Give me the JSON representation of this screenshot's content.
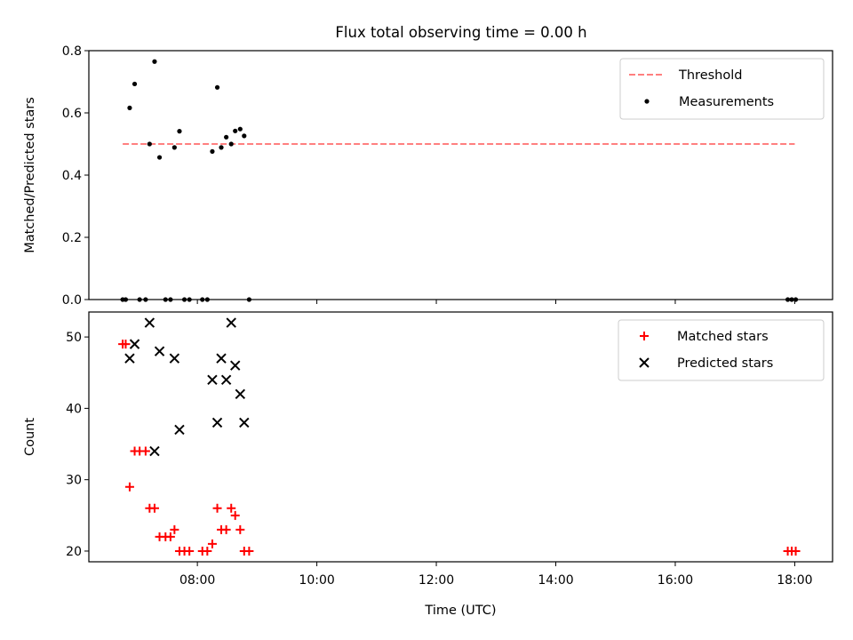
{
  "title": "Flux total observing time = 0.00 h",
  "chart_data": [
    {
      "type": "scatter",
      "ylabel": "Matched/Predicted stars",
      "xlabel": "",
      "xlim": [
        "06:11",
        "18:38"
      ],
      "ylim": [
        0,
        0.8
      ],
      "yticks": [
        0,
        0.2,
        0.4,
        0.6,
        0.8
      ],
      "ytick_labels": [
        "0.0",
        "0.2",
        "0.4",
        "0.6",
        "0.8"
      ],
      "legend_position": "top-right",
      "threshold": {
        "name": "Threshold",
        "value": 0.5,
        "x_from": "06:45",
        "x_to": "18:00",
        "color": "#ff7f7f",
        "style": "dashed"
      },
      "series": [
        {
          "name": "Measurements",
          "color": "#000000",
          "marker": "dot",
          "points": [
            [
              "06:45",
              0
            ],
            [
              "06:48",
              0
            ],
            [
              "06:52",
              0.616
            ],
            [
              "06:57",
              0.693
            ],
            [
              "07:02",
              0
            ],
            [
              "07:08",
              0
            ],
            [
              "07:12",
              0.5
            ],
            [
              "07:17",
              0.765
            ],
            [
              "07:22",
              0.457
            ],
            [
              "07:28",
              0
            ],
            [
              "07:33",
              0
            ],
            [
              "07:37",
              0.489
            ],
            [
              "07:42",
              0.541
            ],
            [
              "07:47",
              0
            ],
            [
              "07:52",
              0
            ],
            [
              "08:05",
              0
            ],
            [
              "08:10",
              0
            ],
            [
              "08:15",
              0.476
            ],
            [
              "08:20",
              0.682
            ],
            [
              "08:24",
              0.489
            ],
            [
              "08:29",
              0.522
            ],
            [
              "08:34",
              0.5
            ],
            [
              "08:38",
              0.542
            ],
            [
              "08:43",
              0.548
            ],
            [
              "08:47",
              0.526
            ],
            [
              "08:52",
              0
            ],
            [
              "17:53",
              0
            ],
            [
              "17:57",
              0
            ],
            [
              "18:01",
              0
            ]
          ]
        }
      ]
    },
    {
      "type": "scatter",
      "ylabel": "Count",
      "xlabel": "Time (UTC)",
      "xlim": [
        "06:11",
        "18:38"
      ],
      "ylim": [
        18.5,
        53.5
      ],
      "yticks": [
        20,
        30,
        40,
        50
      ],
      "ytick_labels": [
        "20",
        "30",
        "40",
        "50"
      ],
      "xticks": [
        "08:00",
        "10:00",
        "12:00",
        "14:00",
        "16:00",
        "18:00"
      ],
      "xtick_labels": [
        "08:00",
        "10:00",
        "12:00",
        "14:00",
        "16:00",
        "18:00"
      ],
      "legend_position": "top-right",
      "series": [
        {
          "name": "Matched stars",
          "color": "#ff0000",
          "marker": "plus",
          "points": [
            [
              "06:45",
              49
            ],
            [
              "06:48",
              49
            ],
            [
              "06:52",
              29
            ],
            [
              "06:57",
              34
            ],
            [
              "07:02",
              34
            ],
            [
              "07:08",
              34
            ],
            [
              "07:12",
              26
            ],
            [
              "07:17",
              26
            ],
            [
              "07:22",
              22
            ],
            [
              "07:28",
              22
            ],
            [
              "07:33",
              22
            ],
            [
              "07:37",
              23
            ],
            [
              "07:42",
              20
            ],
            [
              "07:47",
              20
            ],
            [
              "07:52",
              20
            ],
            [
              "08:05",
              20
            ],
            [
              "08:10",
              20
            ],
            [
              "08:15",
              21
            ],
            [
              "08:20",
              26
            ],
            [
              "08:24",
              23
            ],
            [
              "08:29",
              23
            ],
            [
              "08:34",
              26
            ],
            [
              "08:38",
              25
            ],
            [
              "08:43",
              23
            ],
            [
              "08:47",
              20
            ],
            [
              "08:52",
              20
            ],
            [
              "17:53",
              20
            ],
            [
              "17:57",
              20
            ],
            [
              "18:01",
              20
            ]
          ]
        },
        {
          "name": "Predicted stars",
          "color": "#000000",
          "marker": "x",
          "points": [
            [
              "06:52",
              47
            ],
            [
              "06:57",
              49
            ],
            [
              "07:12",
              52
            ],
            [
              "07:17",
              34
            ],
            [
              "07:22",
              48
            ],
            [
              "07:37",
              47
            ],
            [
              "07:42",
              37
            ],
            [
              "08:15",
              44
            ],
            [
              "08:20",
              38
            ],
            [
              "08:24",
              47
            ],
            [
              "08:29",
              44
            ],
            [
              "08:34",
              52
            ],
            [
              "08:38",
              46
            ],
            [
              "08:43",
              42
            ],
            [
              "08:47",
              38
            ]
          ]
        }
      ]
    }
  ]
}
